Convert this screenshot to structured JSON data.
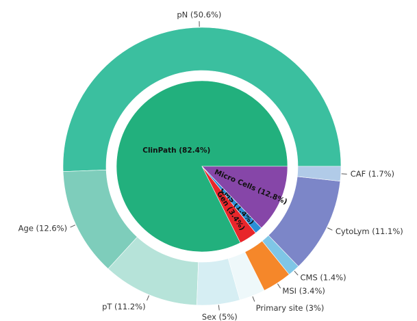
{
  "chart_data": {
    "type": "nested-pie",
    "rings": [
      {
        "values": [
          82.4,
          3.4,
          1.4,
          12.8
        ],
        "value_labels": [
          "ClinPath (82.4%)",
          "Gen (3.4%)",
          "CMS (1.4%)",
          "Micro Cells (12.8%)"
        ],
        "colors": [
          "#22b07d",
          "#e8262b",
          "#2b8fd6",
          "#8646a8"
        ]
      },
      {
        "values": [
          50.6,
          12.6,
          11.2,
          5,
          3,
          3.4,
          1.4,
          11.1,
          1.7
        ],
        "value_labels": [
          "pN (50.6%)",
          "Age (12.6%)",
          "pT (11.2%)",
          "Sex (5%)",
          "Primary site (3%)",
          "MSI (3.4%)",
          "CMS (1.4%)",
          "CytoLym (11.1%)",
          "CAF (1.7%)"
        ],
        "colors": [
          "#3bbf9f",
          "#7ecdbb",
          "#b6e3d9",
          "#d6eef3",
          "#eef8fa",
          "#f5872a",
          "#7fc6e6",
          "#7c86c8",
          "#b1cbe8"
        ]
      }
    ]
  }
}
